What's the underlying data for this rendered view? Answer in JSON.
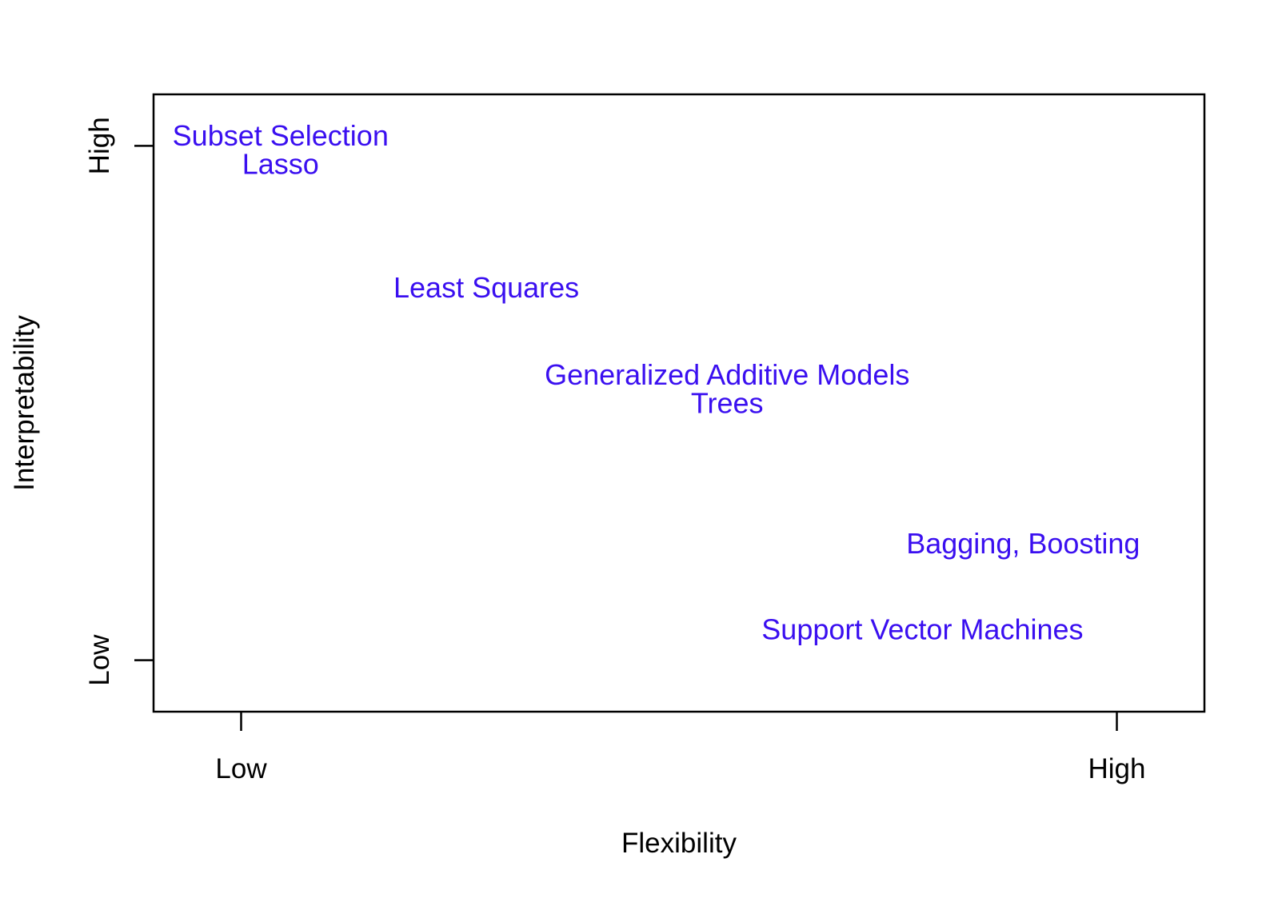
{
  "chart_data": {
    "type": "scatter",
    "title": "",
    "xlabel": "Flexibility",
    "ylabel": "Interpretability",
    "xlim": [
      -0.1,
      1.1
    ],
    "ylim": [
      -0.1,
      1.1
    ],
    "x_ticks": [
      {
        "value": 0,
        "label": "Low"
      },
      {
        "value": 1,
        "label": "High"
      }
    ],
    "y_ticks": [
      {
        "value": 0,
        "label": "Low"
      },
      {
        "value": 1,
        "label": "High"
      }
    ],
    "grid": false,
    "legend": "none",
    "label_color": "#3a0ff0",
    "points": [
      {
        "label": "Subset Selection",
        "x": 0.045,
        "y": 1.02
      },
      {
        "label": "Lasso",
        "x": 0.045,
        "y": 0.965
      },
      {
        "label": "Least Squares",
        "x": 0.28,
        "y": 0.725
      },
      {
        "label": "Generalized Additive Models",
        "x": 0.555,
        "y": 0.555
      },
      {
        "label": "Trees",
        "x": 0.555,
        "y": 0.5
      },
      {
        "label": "Bagging, Boosting",
        "x": 0.893,
        "y": 0.227
      },
      {
        "label": "Support Vector Machines",
        "x": 0.778,
        "y": 0.06
      }
    ]
  }
}
